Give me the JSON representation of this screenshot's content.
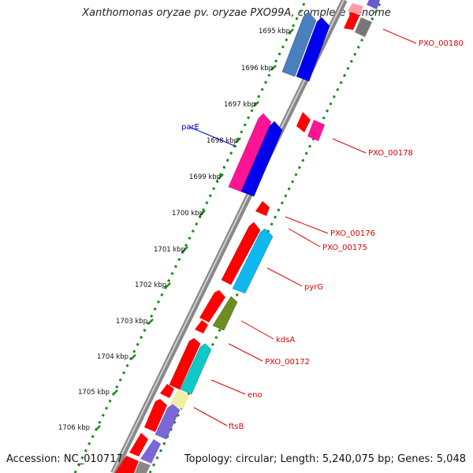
{
  "title": "Xanthomonas oryzae pv. oryzae PXO99A, complete genome",
  "footer": {
    "accession": "Accession: NC_010717",
    "summary": "Topology: circular; Length: 5,240,075 bp; Genes: 5,048"
  },
  "ticks": [
    "1695 kbp",
    "1696 kbp",
    "1697 kbp",
    "1698 kbp",
    "1699 kbp",
    "1700 kbp",
    "1701 kbp",
    "1702 kbp",
    "1703 kbp",
    "1704 kbp",
    "1705 kbp",
    "1706 kbp"
  ],
  "gene_labels": {
    "pxo_00180": "PXO_00180",
    "pare": "parE",
    "pxo_00178": "PXO_00178",
    "pxo_00176": "PXO_00176",
    "pxo_00175": "PXO_00175",
    "pyrg": "pyrG",
    "kdsa": "kdsA",
    "pxo_00172": "PXO_00172",
    "eno": "eno",
    "ftsb": "ftsB"
  },
  "colors": {
    "cds_red": "#ff0000",
    "blue": "#0000ee",
    "steel_blue": "#4a7fc0",
    "magenta": "#ff1493",
    "cyan_blue": "#10b8f0",
    "olive": "#6b8e23",
    "teal": "#10c8c8",
    "pale_yellow": "#f0eea0",
    "slate_purple": "#7a68d8",
    "backbone_gray": "#888888",
    "dots_green": "#1a8a1a",
    "label_red": "#e00000",
    "label_blue": "#0000cc"
  }
}
